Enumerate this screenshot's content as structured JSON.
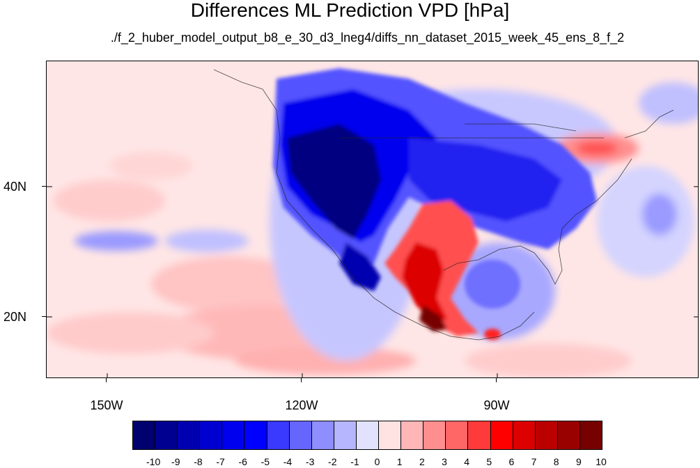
{
  "title": "Differences ML Prediction VPD [hPa]",
  "subtitle": "./f_2_huber_model_output_b8_e_30_d3_lneg4/diffs_nn_dataset_2015_week_45_ens_8_f_2",
  "lat_labels": [
    "40N",
    "20N"
  ],
  "lon_labels": [
    "150W",
    "120W",
    "90W"
  ],
  "colorbar": {
    "labels": [
      "-10",
      "-9",
      "-8",
      "-7",
      "-6",
      "-5",
      "-4",
      "-3",
      "-2",
      "-1",
      "0",
      "1",
      "2",
      "3",
      "4",
      "5",
      "6",
      "7",
      "8",
      "9",
      "10"
    ],
    "colors": [
      "#00006e",
      "#000090",
      "#0000b0",
      "#0000d0",
      "#0000ee",
      "#0000ff",
      "#3a3aff",
      "#6666ff",
      "#8e8eff",
      "#b6b6ff",
      "#e2e2ff",
      "#ffe2e2",
      "#ffb6b6",
      "#ff8e8e",
      "#ff6666",
      "#ff3a3a",
      "#ff0000",
      "#dd0000",
      "#bb0000",
      "#990000",
      "#770000"
    ]
  }
}
